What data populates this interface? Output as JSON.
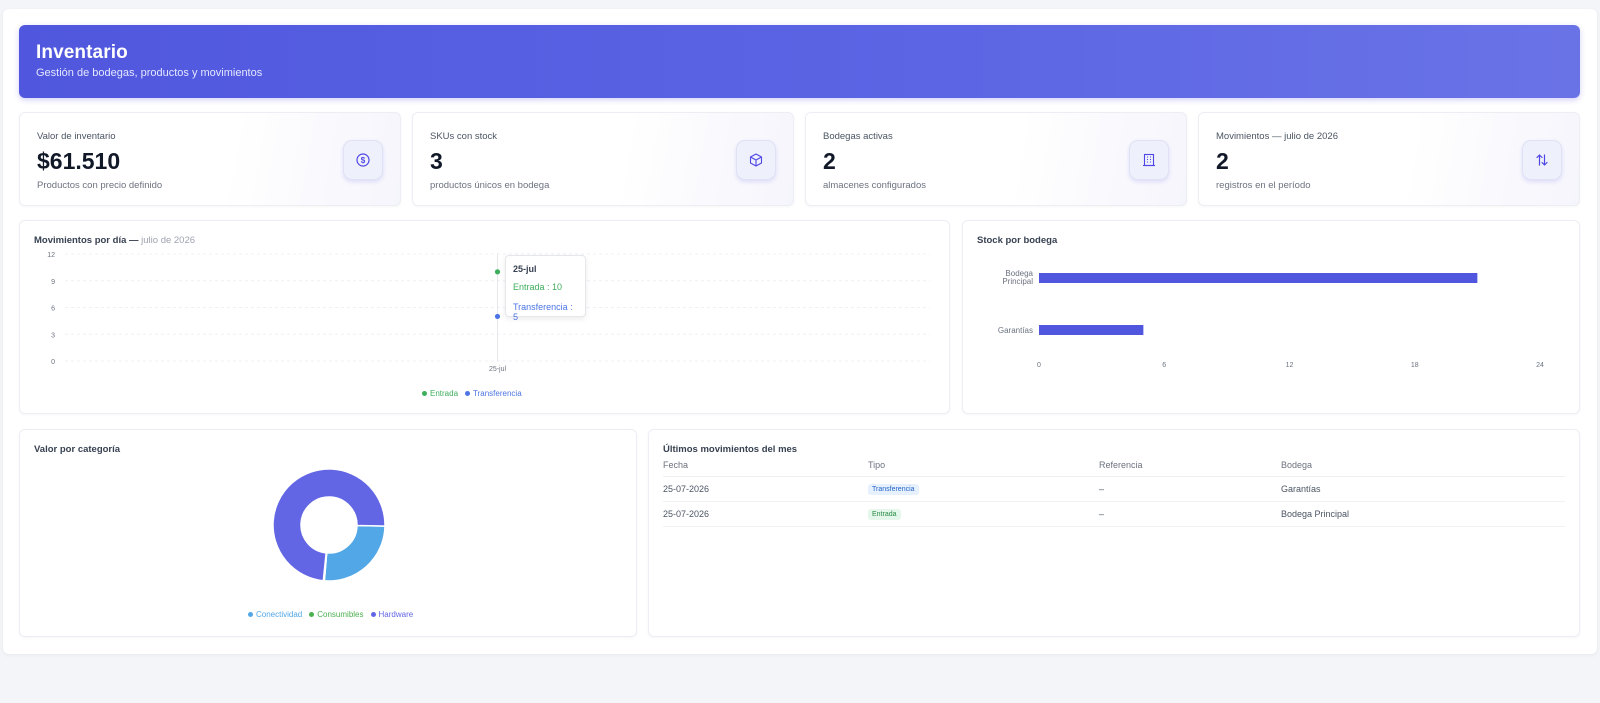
{
  "header": {
    "title": "Inventario",
    "subtitle": "Gestión de bodegas, productos y movimientos"
  },
  "stats": [
    {
      "label": "Valor de inventario",
      "value": "$61.510",
      "sub": "Productos con precio definido",
      "icon": "dollar-icon"
    },
    {
      "label": "SKUs con stock",
      "value": "3",
      "sub": "productos únicos en bodega",
      "icon": "box-icon"
    },
    {
      "label": "Bodegas activas",
      "value": "2",
      "sub": "almacenes configurados",
      "icon": "building-icon"
    },
    {
      "label": "Movimientos — julio de 2026",
      "value": "2",
      "sub": "registros en el período",
      "icon": "arrows-updown-icon"
    }
  ],
  "colors": {
    "accent": "#5057de",
    "entrada": "#3dae5b",
    "transferencia": "#4b74e4",
    "conectividad": "#52a7e6",
    "consumibles": "#4caf50",
    "hardware": "#6266e4"
  },
  "movements_chart": {
    "title": "Movimientos por día —",
    "period": "julio de 2026",
    "tooltip": {
      "title": "25-jul",
      "entrada": "Entrada : 10",
      "transferencia": "Transferencia : 5"
    },
    "legend": [
      "Entrada",
      "Transferencia"
    ]
  },
  "stock_chart": {
    "title": "Stock por bodega"
  },
  "category_chart": {
    "title": "Valor por categoría",
    "legend": [
      "Conectividad",
      "Consumibles",
      "Hardware"
    ]
  },
  "chart_data": [
    {
      "type": "line",
      "x": [
        "25-jul"
      ],
      "series": [
        {
          "name": "Entrada",
          "values": [
            10
          ]
        },
        {
          "name": "Transferencia",
          "values": [
            5
          ]
        }
      ],
      "ylim": [
        0,
        12
      ],
      "yticks": [
        "0",
        "3",
        "6",
        "9",
        "12"
      ],
      "grid": true,
      "legend_position": "bottom"
    },
    {
      "type": "bar",
      "orientation": "horizontal",
      "categories": [
        "Bodega Principal",
        "Garantías"
      ],
      "values": [
        21,
        5
      ],
      "xlim": [
        0,
        24
      ],
      "xticks": [
        "0",
        "6",
        "12",
        "18",
        "24"
      ]
    },
    {
      "type": "pie",
      "donut": true,
      "categories": [
        "Conectividad",
        "Consumibles",
        "Hardware"
      ],
      "values": [
        26,
        0.3,
        73.7
      ],
      "legend_position": "bottom"
    }
  ],
  "table": {
    "title": "Últimos movimientos del mes",
    "columns": [
      "Fecha",
      "Tipo",
      "Referencia",
      "Bodega"
    ],
    "rows": [
      {
        "fecha": "25-07-2026",
        "tipo": "Transferencia",
        "referencia": "–",
        "bodega": "Garantías"
      },
      {
        "fecha": "25-07-2026",
        "tipo": "Entrada",
        "referencia": "–",
        "bodega": "Bodega Principal"
      }
    ]
  }
}
